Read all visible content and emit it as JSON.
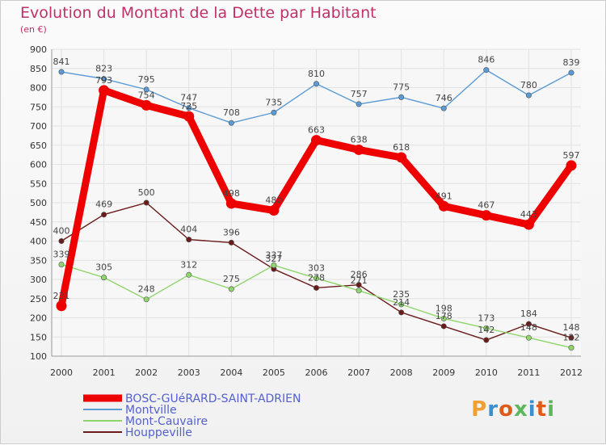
{
  "title": "Evolution du Montant de la Dette par Habitant",
  "unit": "(en €)",
  "logo": {
    "text": "Proxiti",
    "colors": [
      "#f0a030",
      "#3a8fd0",
      "#e05a1a",
      "#5cb85c",
      "#3a8fd0",
      "#e05a1a",
      "#5cb85c"
    ]
  },
  "chart_data": {
    "type": "line",
    "x": [
      2000,
      2001,
      2002,
      2003,
      2004,
      2005,
      2006,
      2007,
      2008,
      2009,
      2010,
      2011,
      2012
    ],
    "ylim": [
      100,
      900
    ],
    "yticks": [
      100,
      150,
      200,
      250,
      300,
      350,
      400,
      450,
      500,
      550,
      600,
      650,
      700,
      750,
      800,
      850,
      900
    ],
    "grid": true,
    "legend": "bottom-left",
    "series": [
      {
        "name": "BOSC-GUéRARD-SAINT-ADRIEN",
        "color": "#ee0000",
        "values": [
          231,
          793,
          754,
          725,
          498,
          480,
          663,
          638,
          618,
          491,
          467,
          443,
          597
        ]
      },
      {
        "name": "Montville",
        "color": "#5a9bd5",
        "values": [
          841,
          823,
          795,
          747,
          708,
          735,
          810,
          757,
          775,
          746,
          846,
          780,
          839
        ]
      },
      {
        "name": "Mont-Cauvaire",
        "color": "#8ed56b",
        "values": [
          339,
          305,
          248,
          312,
          275,
          337,
          303,
          271,
          235,
          198,
          173,
          148,
          122
        ]
      },
      {
        "name": "Houppeville",
        "color": "#6b1a1a",
        "values": [
          400,
          469,
          500,
          404,
          396,
          327,
          278,
          286,
          214,
          178,
          142,
          184,
          148
        ]
      }
    ]
  }
}
